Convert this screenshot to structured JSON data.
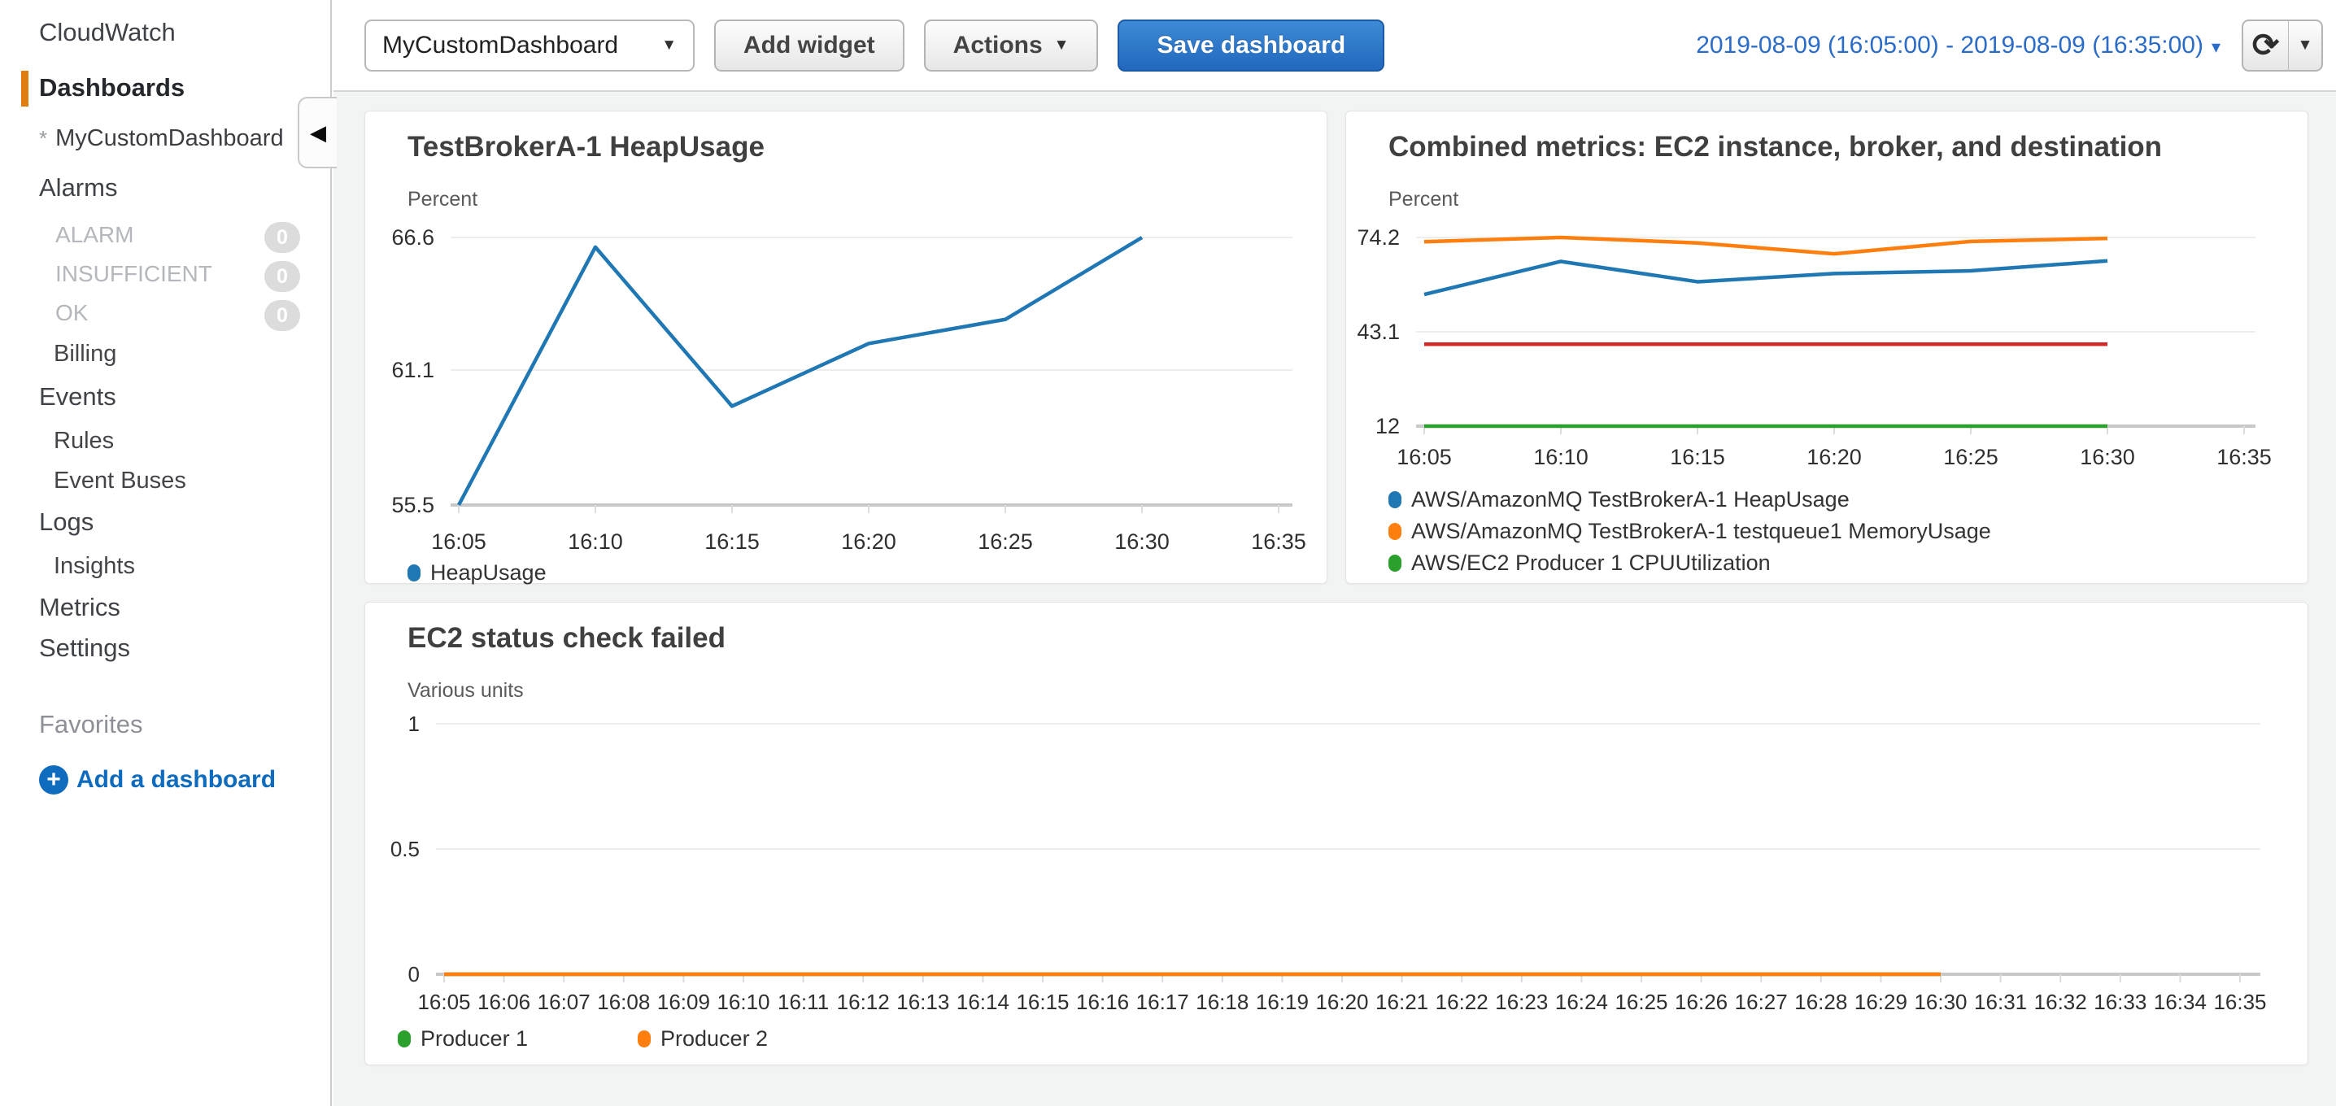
{
  "sidebar": {
    "app_title": "CloudWatch",
    "items": [
      {
        "label": "Dashboards"
      },
      {
        "label": "MyCustomDashboard",
        "marker": "*"
      },
      {
        "label": "Alarms"
      },
      {
        "label": "ALARM",
        "count": "0"
      },
      {
        "label": "INSUFFICIENT",
        "count": "0"
      },
      {
        "label": "OK",
        "count": "0"
      },
      {
        "label": "Billing"
      },
      {
        "label": "Events"
      },
      {
        "label": "Rules"
      },
      {
        "label": "Event Buses"
      },
      {
        "label": "Logs"
      },
      {
        "label": "Insights"
      },
      {
        "label": "Metrics"
      },
      {
        "label": "Settings"
      },
      {
        "label": "Favorites"
      },
      {
        "label": "Add a dashboard"
      }
    ]
  },
  "topbar": {
    "dashboard_select": {
      "value": "MyCustomDashboard"
    },
    "add_widget_label": "Add widget",
    "actions_label": "Actions",
    "save_label": "Save dashboard",
    "date_range": "2019-08-09 (16:05:00) - 2019-08-09 (16:35:00)"
  },
  "colors": {
    "accent_orange": "#e07f10",
    "link_blue": "#0f6bbd",
    "date_blue": "#2b6cc8",
    "primary_button_blue": "#2e7fd0",
    "series_blue": "#1f77b4",
    "series_orange": "#ff7f0e",
    "series_green": "#2ca02c",
    "series_red": "#d62728"
  },
  "chart_data": [
    {
      "type": "line",
      "title": "TestBrokerA-1 HeapUsage",
      "ylabel": "Percent",
      "xlabel": "",
      "grid": true,
      "legend_position": "bottom",
      "categories": [
        "16:05",
        "16:10",
        "16:15",
        "16:20",
        "16:25",
        "16:30",
        "16:35"
      ],
      "yticks": [
        66.6,
        61.1,
        55.5
      ],
      "ylim": [
        55.5,
        67.5
      ],
      "series": [
        {
          "name": "HeapUsage",
          "color": "#1f77b4",
          "values": [
            55.5,
            66.2,
            59.6,
            62.2,
            63.2,
            66.6
          ]
        }
      ]
    },
    {
      "type": "line",
      "title": "Combined metrics: EC2 instance, broker, and destination",
      "ylabel": "Percent",
      "xlabel": "",
      "grid": true,
      "legend_position": "bottom",
      "categories": [
        "16:05",
        "16:10",
        "16:15",
        "16:20",
        "16:25",
        "16:30",
        "16:35"
      ],
      "yticks": [
        74.2,
        43.1,
        12
      ],
      "ylim": [
        12,
        81
      ],
      "series": [
        {
          "name": "AWS/AmazonMQ TestBrokerA-1 HeapUsage",
          "color": "#1f77b4",
          "values": [
            55.4,
            66.3,
            59.6,
            62.3,
            63.2,
            66.5
          ]
        },
        {
          "name": "AWS/AmazonMQ TestBrokerA-1 testqueue1 MemoryUsage",
          "color": "#ff7f0e",
          "values": [
            72.8,
            74.2,
            72.4,
            68.8,
            72.9,
            73.9
          ]
        },
        {
          "name": "AWS/EC2 Producer 1 CPUUtilization",
          "color": "#2ca02c",
          "values": [
            12,
            12,
            12,
            12,
            12,
            12
          ]
        },
        {
          "name": "",
          "color": "#d62728",
          "values": [
            39,
            39,
            39,
            39,
            39,
            39
          ]
        }
      ]
    },
    {
      "type": "line",
      "title": "EC2 status check failed",
      "ylabel": "Various units",
      "xlabel": "",
      "grid": true,
      "legend_position": "bottom",
      "categories": [
        "16:05",
        "16:06",
        "16:07",
        "16:08",
        "16:09",
        "16:10",
        "16:11",
        "16:12",
        "16:13",
        "16:14",
        "16:15",
        "16:16",
        "16:17",
        "16:18",
        "16:19",
        "16:20",
        "16:21",
        "16:22",
        "16:23",
        "16:24",
        "16:25",
        "16:26",
        "16:27",
        "16:28",
        "16:29",
        "16:30",
        "16:31",
        "16:32",
        "16:33",
        "16:34",
        "16:35"
      ],
      "yticks": [
        1,
        0.5,
        0
      ],
      "ylim": [
        0,
        1.08
      ],
      "series": [
        {
          "name": "Producer 1",
          "color": "#2ca02c",
          "values": [
            0,
            0,
            0,
            0,
            0,
            0,
            0,
            0,
            0,
            0,
            0,
            0,
            0,
            0,
            0,
            0,
            0,
            0,
            0,
            0,
            0,
            0,
            0,
            0,
            0,
            0
          ]
        },
        {
          "name": "Producer 2",
          "color": "#ff7f0e",
          "values": [
            0,
            0,
            0,
            0,
            0,
            0,
            0,
            0,
            0,
            0,
            0,
            0,
            0,
            0,
            0,
            0,
            0,
            0,
            0,
            0,
            0,
            0,
            0,
            0,
            0,
            0
          ]
        }
      ]
    }
  ]
}
